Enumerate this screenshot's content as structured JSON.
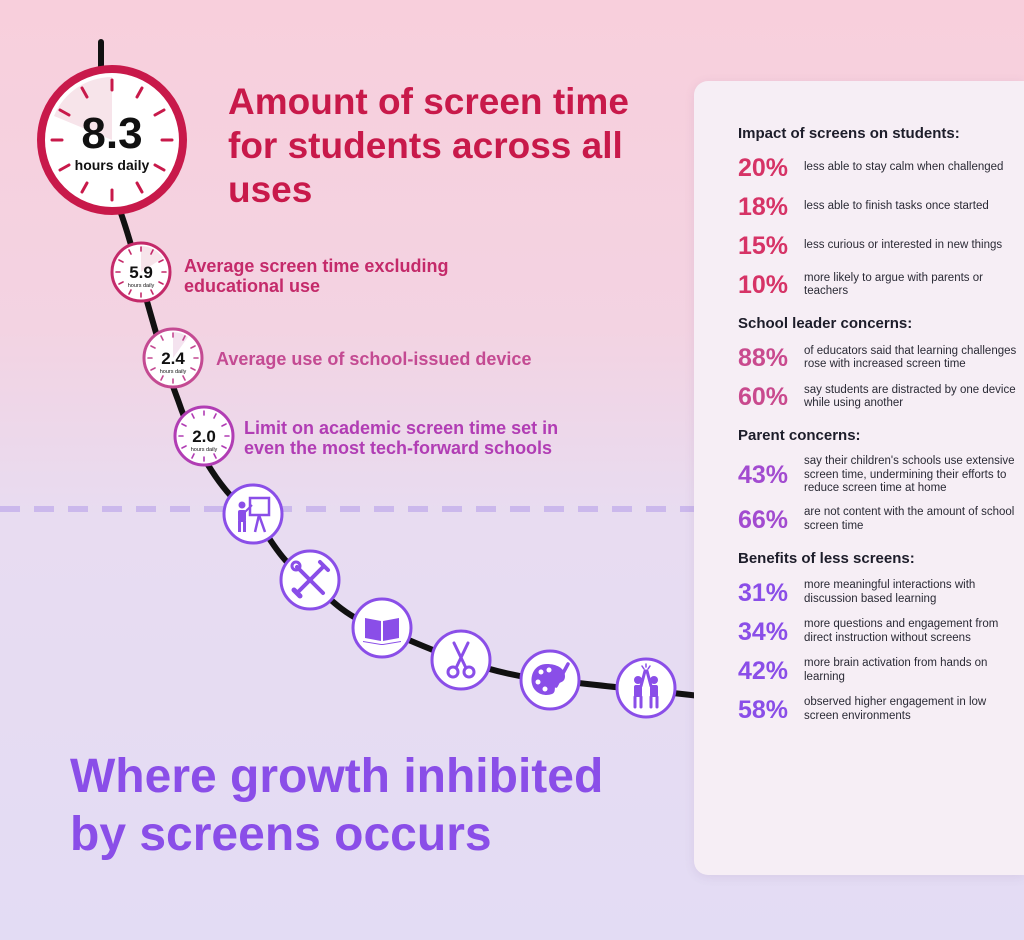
{
  "colors": {
    "primary_red": "#c8194a",
    "pink": "#c42a6a",
    "magenta": "#c44a92",
    "purple": "#b13db4",
    "violet": "#8a4ee8",
    "impact_pct": "#d63366",
    "leader_pct": "#c94a8e",
    "parent_pct": "#a24bd0",
    "benefit_pct": "#8a4ee8"
  },
  "clocks": [
    {
      "value": "8.3",
      "unit": "hours daily"
    },
    {
      "value": "5.9",
      "unit": "hours daily"
    },
    {
      "value": "2.4",
      "unit": "hours daily"
    },
    {
      "value": "2.0",
      "unit": "hours daily"
    }
  ],
  "labels": {
    "main_title": "Amount of screen time for students across all uses",
    "avg_excluding": "Average screen time excluding educational use",
    "school_device": "Average use of school-issued device",
    "academic_limit": "Limit on academic screen time set in even the most tech-forward schools",
    "bottom_title": "Where growth inhibited by screens occurs"
  },
  "icons": [
    "teacher-icon",
    "tools-icon",
    "book-icon",
    "scissors-icon",
    "palette-icon",
    "high-five-icon"
  ],
  "panel": {
    "impact": {
      "title": "Impact of screens on students:",
      "stats": [
        {
          "pct": "20%",
          "desc": "less able to stay calm when challenged"
        },
        {
          "pct": "18%",
          "desc": "less able to finish tasks once started"
        },
        {
          "pct": "15%",
          "desc": "less curious or interested in new things"
        },
        {
          "pct": "10%",
          "desc": "more likely to argue with parents or teachers"
        }
      ]
    },
    "leader": {
      "title": "School leader concerns:",
      "stats": [
        {
          "pct": "88%",
          "desc": "of educators said that learning challenges rose with increased screen time"
        },
        {
          "pct": "60%",
          "desc": "say students are distracted by one device while using another"
        }
      ]
    },
    "parent": {
      "title": "Parent concerns:",
      "stats": [
        {
          "pct": "43%",
          "desc": "say their children's schools use extensive screen time, undermining their efforts to reduce screen time at home"
        },
        {
          "pct": "66%",
          "desc": "are not content with the amount of school screen time"
        }
      ]
    },
    "benefits": {
      "title": "Benefits of less screens:",
      "stats": [
        {
          "pct": "31%",
          "desc": "more meaningful interactions with discussion based learning"
        },
        {
          "pct": "34%",
          "desc": "more questions and engagement from direct instruction without screens"
        },
        {
          "pct": "42%",
          "desc": "more brain activation from hands on learning"
        },
        {
          "pct": "58%",
          "desc": "observed higher engagement in low screen environments"
        }
      ]
    }
  }
}
